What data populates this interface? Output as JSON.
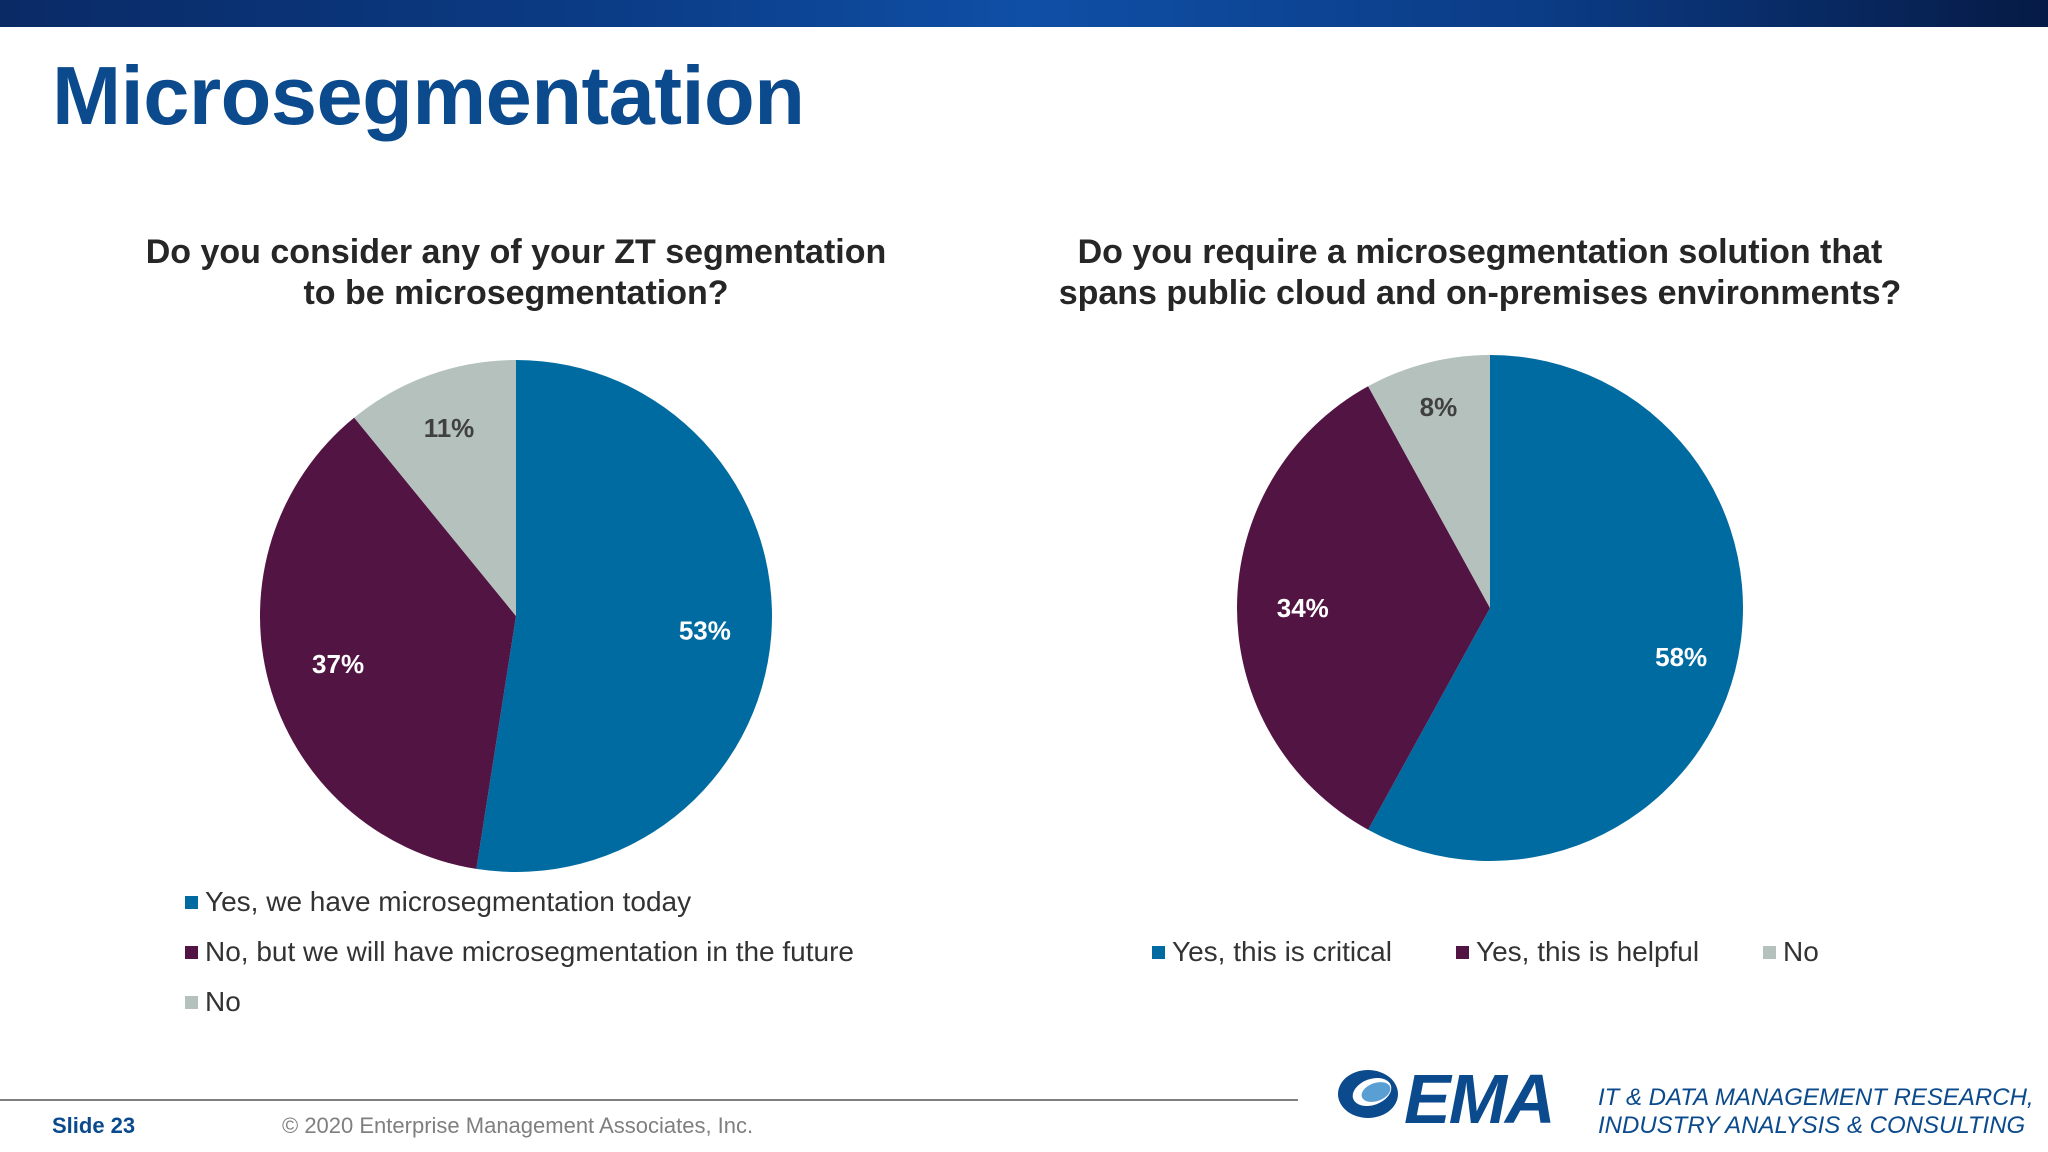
{
  "header": {
    "title": "Microsegmentation"
  },
  "colors": {
    "blue": "#006ba1",
    "purple": "#521443",
    "gray": "#b4c1bc",
    "title_blue": "#0b4a8c"
  },
  "chart_data": [
    {
      "type": "pie",
      "title_lines": [
        "Do you consider any of your ZT segmentation",
        "to be microsegmentation?"
      ],
      "series": [
        {
          "name": "Yes, we have microsegmentation today",
          "value": 53,
          "label": "53%",
          "color": "#006ba1"
        },
        {
          "name": "No, but we will have microsegmentation in the future",
          "value": 37,
          "label": "37%",
          "color": "#521443"
        },
        {
          "name": "No",
          "value": 11,
          "label": "11%",
          "color": "#b4c1bc"
        }
      ],
      "legend_position": "bottom-stacked"
    },
    {
      "type": "pie",
      "title_lines": [
        "Do you require a microsegmentation solution that",
        "spans public cloud and on-premises environments?"
      ],
      "series": [
        {
          "name": "Yes, this is critical",
          "value": 58,
          "label": "58%",
          "color": "#006ba1"
        },
        {
          "name": "Yes, this is helpful",
          "value": 34,
          "label": "34%",
          "color": "#521443"
        },
        {
          "name": "No",
          "value": 8,
          "label": "8%",
          "color": "#b4c1bc"
        }
      ],
      "legend_position": "bottom-row"
    }
  ],
  "footer": {
    "slide": "Slide 23",
    "copyright": "© 2020 Enterprise Management Associates, Inc.",
    "logo_text": "EMA",
    "tagline_lines": [
      "IT & DATA MANAGEMENT RESEARCH,",
      "INDUSTRY ANALYSIS & CONSULTING"
    ]
  }
}
